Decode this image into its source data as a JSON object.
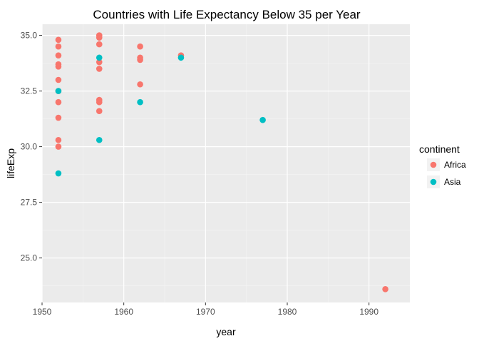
{
  "chart_data": {
    "type": "scatter",
    "title": "Countries with Life Expectancy Below 35 per Year",
    "xlabel": "year",
    "ylabel": "lifeExp",
    "xlim": [
      1950,
      1995
    ],
    "ylim": [
      23,
      35.5
    ],
    "x_ticks": [
      1950,
      1960,
      1970,
      1980,
      1990
    ],
    "y_ticks": [
      25.0,
      27.5,
      30.0,
      32.5,
      35.0
    ],
    "y_tick_labels": [
      "25.0",
      "27.5",
      "30.0",
      "32.5",
      "35.0"
    ],
    "grid": true,
    "legend": {
      "title": "continent",
      "placement": "right"
    },
    "series": [
      {
        "name": "Africa",
        "color": "#F8766D",
        "points": [
          [
            1952,
            34.8
          ],
          [
            1952,
            34.5
          ],
          [
            1952,
            34.1
          ],
          [
            1952,
            33.7
          ],
          [
            1952,
            33.6
          ],
          [
            1952,
            32.5
          ],
          [
            1952,
            33.0
          ],
          [
            1952,
            32.0
          ],
          [
            1952,
            31.3
          ],
          [
            1952,
            30.3
          ],
          [
            1952,
            30.0
          ],
          [
            1957,
            35.0
          ],
          [
            1957,
            34.9
          ],
          [
            1957,
            34.6
          ],
          [
            1957,
            33.8
          ],
          [
            1957,
            33.5
          ],
          [
            1957,
            32.1
          ],
          [
            1957,
            32.0
          ],
          [
            1957,
            31.6
          ],
          [
            1962,
            34.5
          ],
          [
            1962,
            34.0
          ],
          [
            1962,
            33.9
          ],
          [
            1962,
            32.8
          ],
          [
            1967,
            34.1
          ],
          [
            1992,
            23.6
          ]
        ]
      },
      {
        "name": "Asia",
        "color": "#00BFC4",
        "points": [
          [
            1952,
            32.5
          ],
          [
            1952,
            28.8
          ],
          [
            1957,
            34.0
          ],
          [
            1957,
            30.3
          ],
          [
            1962,
            32.0
          ],
          [
            1967,
            34.0
          ],
          [
            1977,
            31.2
          ]
        ]
      }
    ]
  }
}
